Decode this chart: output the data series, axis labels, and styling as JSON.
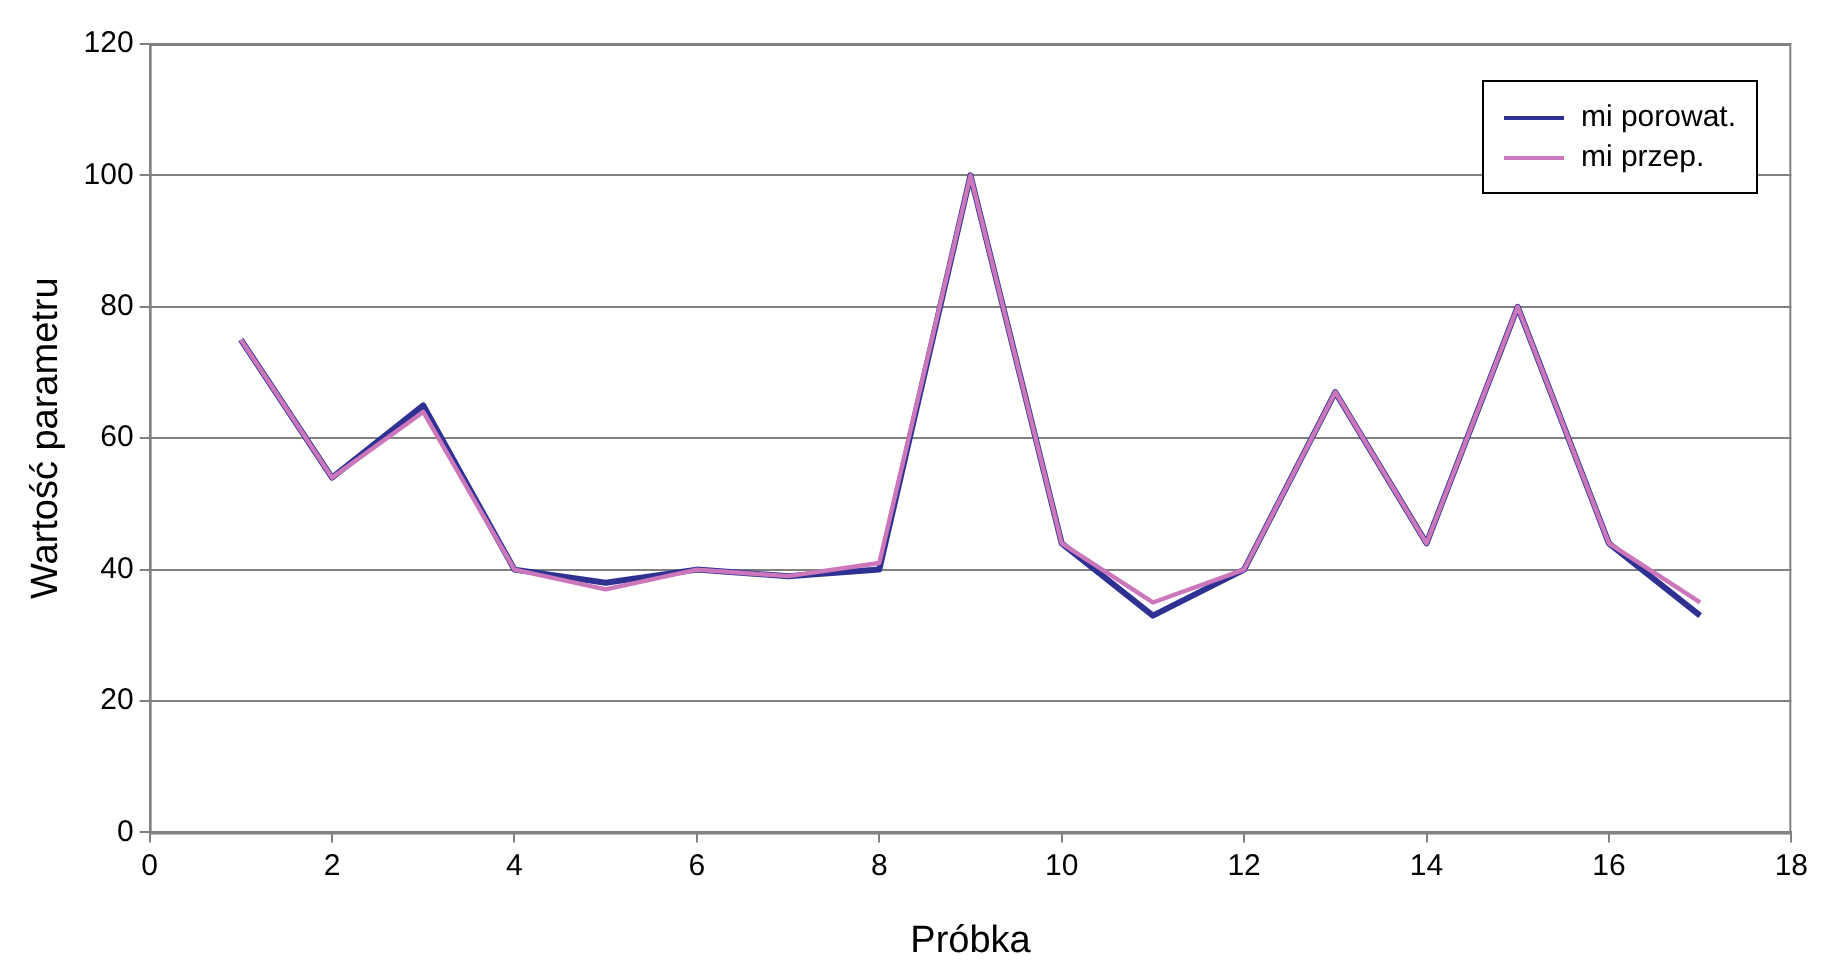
{
  "chart_data": {
    "type": "line",
    "xlabel": "Próbka",
    "ylabel": "Wartość parametru",
    "x": [
      1,
      2,
      3,
      4,
      5,
      6,
      7,
      8,
      9,
      10,
      11,
      12,
      13,
      14,
      15,
      16,
      17
    ],
    "series": [
      {
        "name": "mi porowat.",
        "color": "#2e3192",
        "values": [
          75,
          54,
          65,
          40,
          38,
          40,
          39,
          40,
          100,
          44,
          33,
          40,
          67,
          44,
          80,
          44,
          33
        ]
      },
      {
        "name": "mi przep.",
        "color": "#cc77bb",
        "values": [
          75,
          54,
          64,
          40,
          37,
          40,
          39,
          41,
          100,
          44,
          35,
          40,
          67,
          44,
          80,
          44,
          35
        ]
      }
    ],
    "xlim": [
      0,
      18
    ],
    "xticks": [
      0,
      2,
      4,
      6,
      8,
      10,
      12,
      14,
      16,
      18
    ],
    "ylim": [
      0,
      120
    ],
    "yticks": [
      0,
      20,
      40,
      60,
      80,
      100,
      120
    ],
    "grid": "y",
    "legend": "top right",
    "marker": "none",
    "line_style": "solid"
  }
}
